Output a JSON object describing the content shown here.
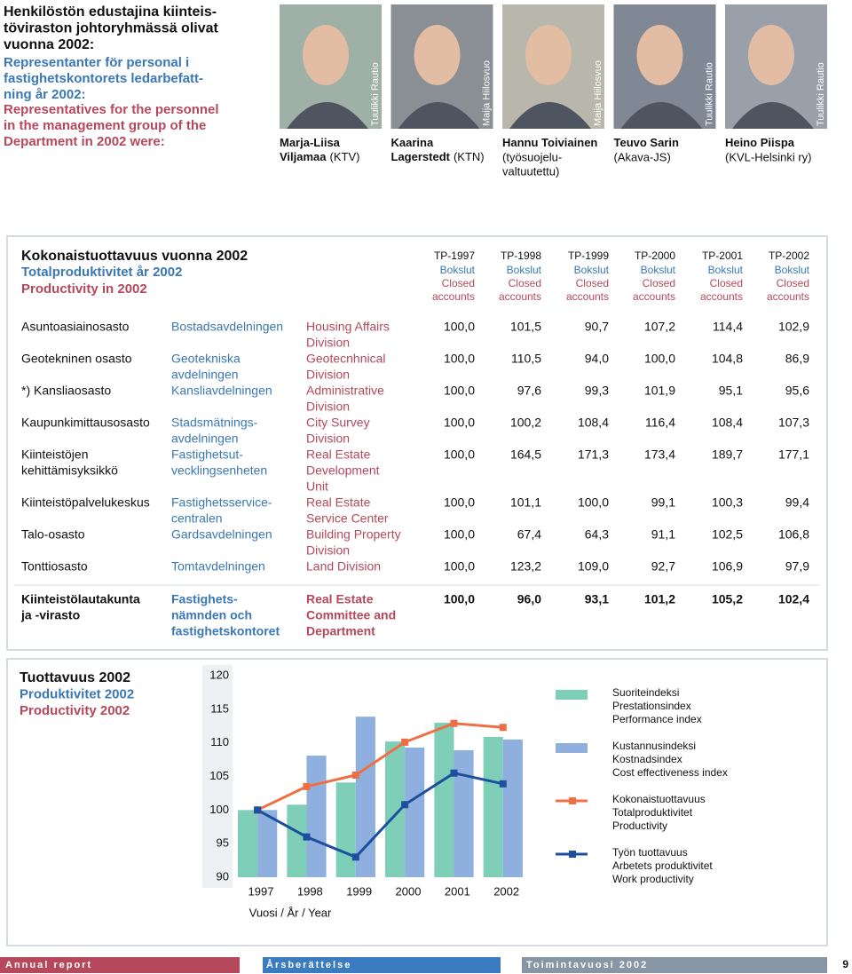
{
  "header": {
    "title": [
      "Henkilöstön edustajina kiinteis-",
      "töviraston johtoryhmässä olivat",
      "vuonna 2002:"
    ],
    "title_sv": [
      "Representanter för personal i",
      "fastighetskontorets ledarbefatt-",
      "ning år 2002:"
    ],
    "title_en": [
      "Representatives for the personnel",
      "in the management group of the",
      "Department in 2002 were:"
    ]
  },
  "people": [
    {
      "name": [
        "Marja-Liisa",
        "Viljamaa"
      ],
      "org": [
        "(KTV)"
      ],
      "credit": "Tuulikki Rautio"
    },
    {
      "name": [
        "Kaarina",
        "Lagerstedt"
      ],
      "org": [
        "(KTN)"
      ],
      "credit": "Maija Hiilosvuo"
    },
    {
      "name": [
        "Hannu Toiviainen"
      ],
      "org": [
        "(työsuojelu-",
        "valtuutettu)"
      ],
      "credit": "Maija Hiilosvuo"
    },
    {
      "name": [
        "Teuvo Sarin"
      ],
      "org": [
        "(Akava-JS)"
      ],
      "credit": "Tuulikki Rautio"
    },
    {
      "name": [
        "Heino Piispa"
      ],
      "org": [
        "(KVL-Helsinki ry)"
      ],
      "credit": "Tuulikki Rautio"
    }
  ],
  "table": {
    "title": "Kokonaistuottavuus vuonna 2002",
    "title_sv": "Totalproduktivitet år 2002",
    "title_en": "Productivity in 2002",
    "columns": [
      {
        "fi": "TP-1997",
        "sv": "Bokslut",
        "en": [
          "Closed",
          "accounts"
        ]
      },
      {
        "fi": "TP-1998",
        "sv": "Bokslut",
        "en": [
          "Closed",
          "accounts"
        ]
      },
      {
        "fi": "TP-1999",
        "sv": "Bokslut",
        "en": [
          "Closed",
          "accounts"
        ]
      },
      {
        "fi": "TP-2000",
        "sv": "Bokslut",
        "en": [
          "Closed",
          "accounts"
        ]
      },
      {
        "fi": "TP-2001",
        "sv": "Bokslut",
        "en": [
          "Closed",
          "accounts"
        ]
      },
      {
        "fi": "TP-2002",
        "sv": "Bokslut",
        "en": [
          "Closed",
          "accounts"
        ]
      }
    ],
    "rows": [
      {
        "fi": [
          "Asuntoasiainosasto"
        ],
        "sv": [
          "Bostadsavdelningen"
        ],
        "en": [
          "Housing Affairs",
          "Division"
        ],
        "values": [
          "100,0",
          "101,5",
          "90,7",
          "107,2",
          "114,4",
          "102,9"
        ]
      },
      {
        "fi": [
          "Geotekninen osasto"
        ],
        "sv": [
          "Geotekniska",
          "avdelningen"
        ],
        "en": [
          "Geotecnhnical",
          "Division"
        ],
        "values": [
          "100,0",
          "110,5",
          "94,0",
          "100,0",
          "104,8",
          "86,9"
        ]
      },
      {
        "fi": [
          "*) Kansliaosasto"
        ],
        "sv": [
          "Kansliavdelningen"
        ],
        "en": [
          "Administrative",
          "Division"
        ],
        "values": [
          "100,0",
          "97,6",
          "99,3",
          "101,9",
          "95,1",
          "95,6"
        ]
      },
      {
        "fi": [
          "Kaupunkimittausosasto"
        ],
        "sv": [
          "Stadsmätnings-",
          "avdelningen"
        ],
        "en": [
          "City Survey",
          "Division"
        ],
        "values": [
          "100,0",
          "100,2",
          "108,4",
          "116,4",
          "108,4",
          "107,3"
        ]
      },
      {
        "fi": [
          "Kiinteistöjen",
          "kehittämisyksikkö"
        ],
        "sv": [
          "Fastighetsut-",
          "vecklingsenheten"
        ],
        "en": [
          "Real Estate",
          "Development",
          "Unit"
        ],
        "values": [
          "100,0",
          "164,5",
          "171,3",
          "173,4",
          "189,7",
          "177,1"
        ]
      },
      {
        "fi": [
          "Kiinteistöpalvelukeskus"
        ],
        "sv": [
          "Fastighetsservice-",
          "centralen"
        ],
        "en": [
          "Real Estate",
          "Service Center"
        ],
        "values": [
          "100,0",
          "101,1",
          "100,0",
          "99,1",
          "100,3",
          "99,4"
        ]
      },
      {
        "fi": [
          "Talo-osasto"
        ],
        "sv": [
          "Gardsavdelningen"
        ],
        "en": [
          "Building Property",
          "Division"
        ],
        "values": [
          "100,0",
          "67,4",
          "64,3",
          "91,1",
          "102,5",
          "106,8"
        ]
      },
      {
        "fi": [
          "Tonttiosasto"
        ],
        "sv": [
          "Tomtavdelningen"
        ],
        "en": [
          "Land Division"
        ],
        "values": [
          "100,0",
          "123,2",
          "109,0",
          "92,7",
          "106,9",
          "97,9"
        ]
      }
    ],
    "total": {
      "fi": [
        "Kiinteistölautakunta",
        "ja -virasto"
      ],
      "sv": [
        "Fastighets-",
        "nämnden och",
        "fastighetskontoret"
      ],
      "en": [
        "Real Estate",
        "Committee and",
        "Department"
      ],
      "values": [
        "100,0",
        "96,0",
        "93,1",
        "101,2",
        "105,2",
        "102,4"
      ]
    }
  },
  "chart_data": {
    "type": "bar_line",
    "title": [
      "Tuottavuus 2002",
      "Produktivitet 2002",
      "Productivity 2002"
    ],
    "x_label": "Vuosi / År / Year",
    "categories": [
      "1997",
      "1998",
      "1999",
      "2000",
      "2001",
      "2002"
    ],
    "ylim": [
      90,
      120
    ],
    "yticks": [
      90,
      95,
      100,
      105,
      110,
      115,
      120
    ],
    "series": [
      {
        "name": [
          "Suoriteindeksi",
          "Prestationsindex",
          "Performance index"
        ],
        "mark": "bar",
        "color": "#7fceb8",
        "values": [
          100,
          100.8,
          104.1,
          110.2,
          113,
          110.9
        ]
      },
      {
        "name": [
          "Kustannusindeksi",
          "Kostnadsindex",
          "Cost effectiveness index"
        ],
        "mark": "bar",
        "color": "#8fb0df",
        "values": [
          100,
          108.1,
          113.9,
          109.3,
          108.9,
          110.5
        ]
      },
      {
        "name": [
          "Kokonaistuottavuus",
          "Totalproduktivitet",
          "Productivity"
        ],
        "mark": "line",
        "color": "#ef6f45",
        "values": [
          100,
          103.5,
          105.2,
          110.1,
          112.9,
          112.3
        ]
      },
      {
        "name": [
          "Työn tuottavuus",
          "Arbetets produktivitet",
          "Work productivity"
        ],
        "mark": "line",
        "color": "#1d4f9e",
        "values": [
          100,
          96,
          93,
          100.8,
          105.5,
          103.9
        ]
      }
    ]
  },
  "footer": {
    "left": "Annual report",
    "middle": "Årsberättelse",
    "right": "Toimintavuosi 2002",
    "page": "9"
  }
}
